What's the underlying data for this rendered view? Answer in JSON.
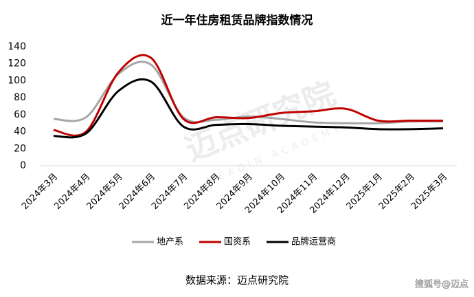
{
  "chart_data": {
    "type": "line",
    "title": "近一年住房租赁品牌指数情况",
    "categories": [
      "2024年3月",
      "2024年4月",
      "2024年5月",
      "2024年6月",
      "2024年7月",
      "2024年8月",
      "2024年9月",
      "2024年10月",
      "2024年11月",
      "2024年12月",
      "2025年1月",
      "2025年2月",
      "2025年3月"
    ],
    "series": [
      {
        "name": "地产系",
        "color": "#a6a6a6",
        "values": [
          55,
          57,
          108,
          119,
          57,
          54,
          58,
          55,
          51,
          50,
          50,
          52,
          52
        ]
      },
      {
        "name": "国资系",
        "color": "#c00000",
        "values": [
          42,
          40,
          110,
          127,
          55,
          57,
          56,
          62,
          64,
          67,
          53,
          53,
          53
        ]
      },
      {
        "name": "品牌运营商",
        "color": "#000000",
        "values": [
          35,
          38,
          88,
          99,
          46,
          48,
          49,
          47,
          46,
          45,
          43,
          43,
          44
        ]
      }
    ],
    "ylim": [
      0,
      140
    ],
    "yticks": [
      0,
      20,
      40,
      60,
      80,
      100,
      120,
      140
    ],
    "grid": false,
    "smooth": true,
    "source": "数据来源：迈点研究院",
    "watermark": "迈点研究院",
    "watermark_en": "MEADIN ACADEMY",
    "credit": "搜狐号@迈点"
  }
}
